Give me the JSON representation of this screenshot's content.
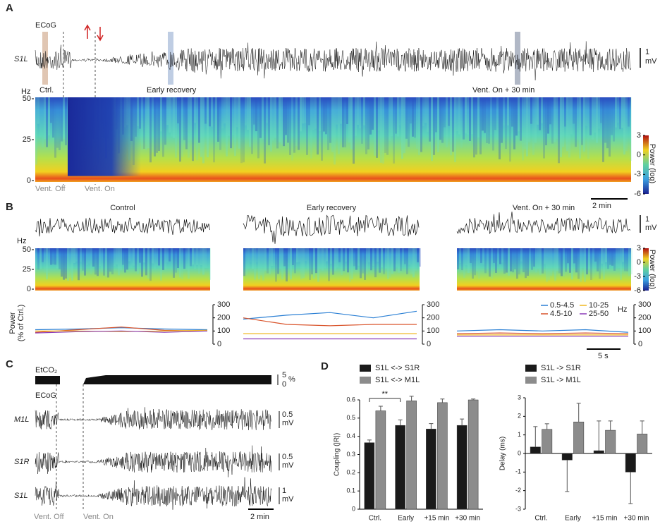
{
  "panel_a": {
    "label": "A",
    "ecog": "ECoG",
    "channel": "S1L",
    "scale_value": "1",
    "scale_unit": "mV",
    "epochs": [
      "Ctrl.",
      "Early recovery",
      "Vent. On + 30 min"
    ],
    "hz": "Hz",
    "hz_ticks": [
      50,
      25,
      0
    ],
    "vent_off": "Vent. Off",
    "vent_on": "Vent. On",
    "time_scale": "2 min",
    "colorbar_ticks": [
      3,
      0,
      -3,
      -6
    ],
    "colorbar_label": "Power (log)"
  },
  "panel_b": {
    "label": "B",
    "titles": [
      "Control",
      "Early recovery",
      "Vent. On + 30 min"
    ],
    "scale_value": "1",
    "scale_unit": "mV",
    "hz": "Hz",
    "hz_ticks": [
      50,
      25,
      0
    ],
    "colorbar_ticks": [
      3,
      0,
      -3,
      -6
    ],
    "colorbar_label": "Power (log)",
    "power_label": [
      "Power",
      "(% of Ctrl.)"
    ],
    "time_scale": "5 s",
    "legend_unit": "Hz"
  },
  "panel_c": {
    "label": "C",
    "etco2": "EtCO₂",
    "etco2_top": "5",
    "etco2_bottom": "0",
    "etco2_unit": "%",
    "ecog": "ECoG",
    "channels": [
      {
        "name": "M1L",
        "scale": "0.5",
        "unit": "mV"
      },
      {
        "name": "S1R",
        "scale": "0.5",
        "unit": "mV"
      },
      {
        "name": "S1L",
        "scale": "1",
        "unit": "mV"
      }
    ],
    "vent_off": "Vent. Off",
    "vent_on": "Vent. On",
    "time_scale": "2 min"
  },
  "panel_d": {
    "label": "D"
  },
  "chart_data": [
    {
      "type": "line",
      "ylim": [
        0,
        300
      ],
      "yticks": [
        0,
        100,
        200,
        300
      ],
      "series": [
        {
          "color": "#2a7fd4",
          "values": [
            110,
            115,
            125,
            115,
            110
          ]
        },
        {
          "color": "#d9532a",
          "values": [
            90,
            110,
            130,
            105,
            100
          ]
        },
        {
          "color": "#f0b820",
          "values": [
            100,
            100,
            95,
            100,
            105
          ]
        },
        {
          "color": "#8a3ab8",
          "values": [
            85,
            95,
            100,
            90,
            100
          ]
        }
      ]
    },
    {
      "type": "line",
      "ylim": [
        0,
        300
      ],
      "yticks": [
        0,
        100,
        200,
        300
      ],
      "series": [
        {
          "color": "#2a7fd4",
          "values": [
            190,
            220,
            240,
            200,
            250
          ]
        },
        {
          "color": "#d9532a",
          "values": [
            200,
            150,
            140,
            150,
            150
          ]
        },
        {
          "color": "#f0b820",
          "values": [
            80,
            80,
            80,
            80,
            80
          ]
        },
        {
          "color": "#8a3ab8",
          "values": [
            40,
            40,
            40,
            40,
            40
          ]
        }
      ]
    },
    {
      "type": "line",
      "ylim": [
        0,
        300
      ],
      "yticks": [
        0,
        100,
        200,
        300
      ],
      "legend": "top-right",
      "series": [
        {
          "name": "0.5-4.5",
          "color": "#2a7fd4",
          "values": [
            100,
            110,
            100,
            110,
            90
          ]
        },
        {
          "name": "4.5-10",
          "color": "#d9532a",
          "values": [
            80,
            85,
            80,
            85,
            80
          ]
        },
        {
          "name": "10-25",
          "color": "#f0b820",
          "values": [
            70,
            70,
            70,
            70,
            70
          ]
        },
        {
          "name": "25-50",
          "color": "#8a3ab8",
          "values": [
            60,
            60,
            60,
            60,
            60
          ]
        }
      ]
    },
    {
      "type": "bar",
      "ylabel": "Coupling (|R|)",
      "categories": [
        "Ctrl.",
        "Early",
        "+15 min",
        "+30 min"
      ],
      "ylim": [
        0,
        0.6
      ],
      "yticks": [
        0,
        0.1,
        0.2,
        0.3,
        0.4,
        0.5,
        0.6
      ],
      "annotation": "**",
      "series": [
        {
          "name": "S1L <-> S1R",
          "color": "#1a1a1a",
          "values": [
            0.365,
            0.46,
            0.44,
            0.46
          ],
          "errors": [
            0.015,
            0.03,
            0.03,
            0.035
          ]
        },
        {
          "name": "S1L <-> M1L",
          "color": "#8c8c8c",
          "values": [
            0.54,
            0.595,
            0.585,
            0.6
          ],
          "errors": [
            0.025,
            0.025,
            0.02,
            0.005
          ]
        }
      ]
    },
    {
      "type": "bar",
      "ylabel": "Delay (ms)",
      "categories": [
        "Ctrl.",
        "Early",
        "+15 min",
        "+30 min"
      ],
      "ylim": [
        -3,
        3
      ],
      "yticks": [
        -3,
        -2,
        -1,
        0,
        1,
        2,
        3
      ],
      "series": [
        {
          "name": "S1L -> S1R",
          "color": "#1a1a1a",
          "values": [
            0.35,
            -0.35,
            0.15,
            -1.0
          ],
          "errors": [
            1.1,
            1.7,
            1.6,
            1.7
          ]
        },
        {
          "name": "S1L -> M1L",
          "color": "#8c8c8c",
          "values": [
            1.3,
            1.7,
            1.25,
            1.05
          ],
          "errors": [
            0.3,
            1.0,
            0.5,
            0.7
          ]
        }
      ]
    }
  ]
}
